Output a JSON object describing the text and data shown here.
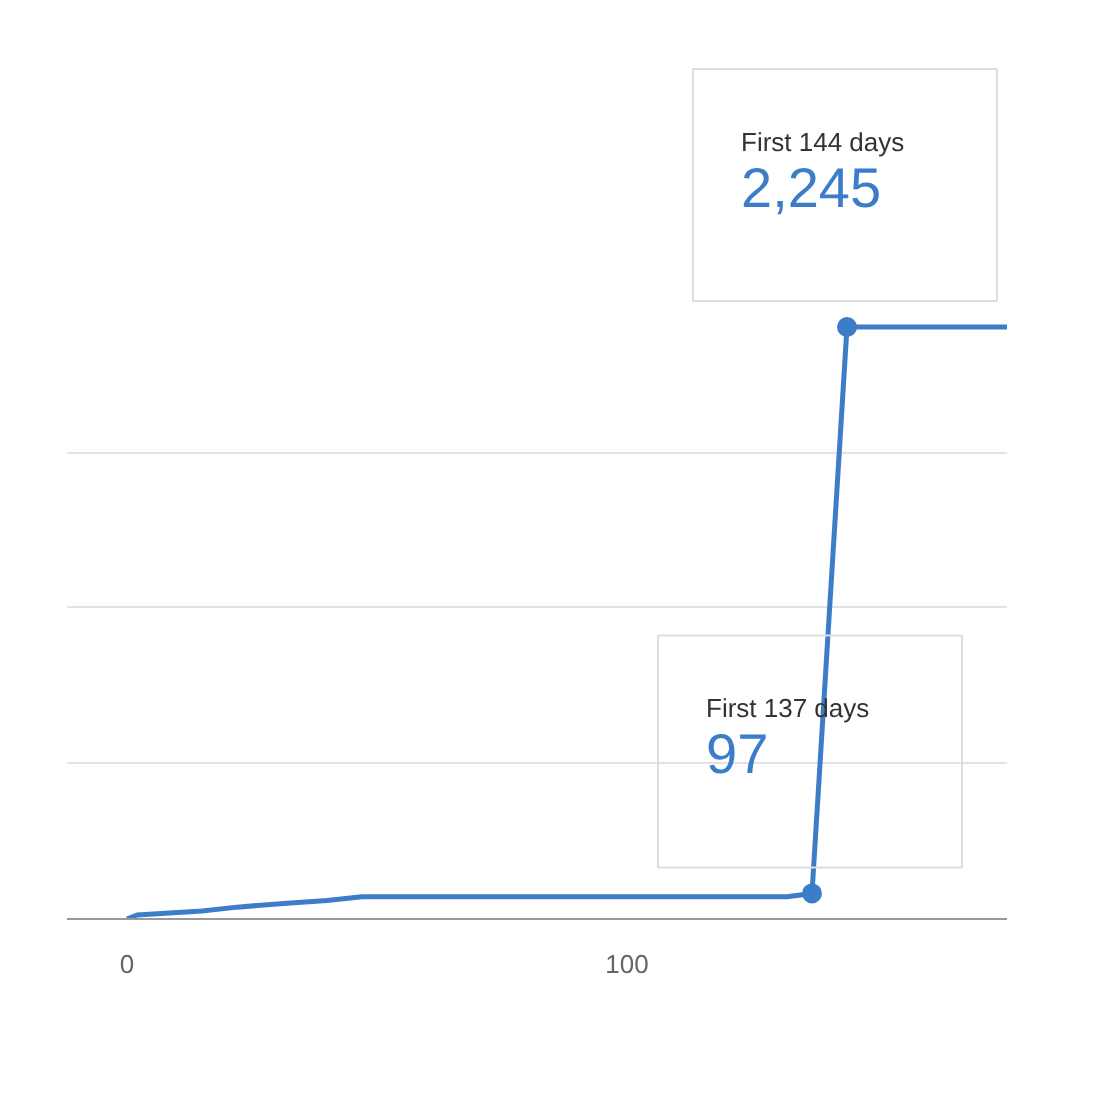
{
  "chart_data": {
    "type": "line",
    "x": [
      0,
      2,
      15,
      22,
      32,
      40,
      47,
      132,
      137,
      144,
      176
    ],
    "series": [
      {
        "color": "#3d7cc9",
        "values": [
          0,
          15,
          30,
          45,
          60,
          70,
          84,
          84,
          97,
          2245,
          2245
        ],
        "value_labels": [
          null,
          null,
          null,
          null,
          null,
          null,
          null,
          null,
          "97",
          "2,245",
          null
        ]
      }
    ],
    "annotations": [
      "First 137 days",
      "First 144 days"
    ],
    "xlim": [
      -12,
      176
    ],
    "xticks": [
      0,
      100
    ],
    "tick_labels": "x",
    "grid": "y"
  }
}
